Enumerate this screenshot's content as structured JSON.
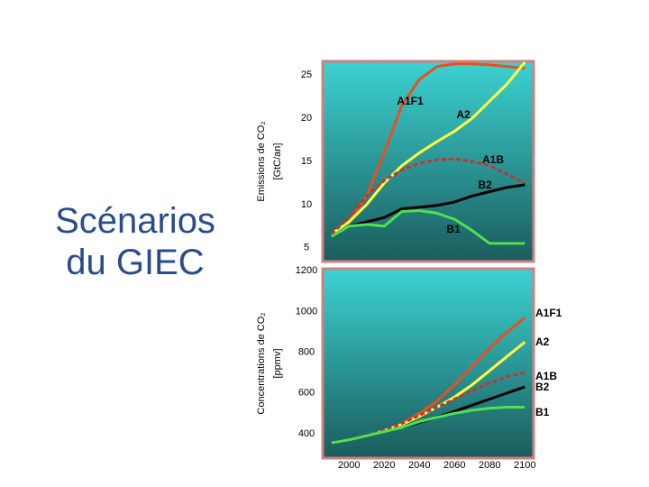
{
  "title": "Scénarios du GIEC",
  "chart_data": [
    {
      "type": "line",
      "ylabel": [
        "Emissions de CO₂",
        "[GtC/an]"
      ],
      "x": [
        1990,
        2000,
        2010,
        2020,
        2030,
        2040,
        2050,
        2060,
        2070,
        2080,
        2090,
        2100
      ],
      "xlim": [
        1985,
        2105
      ],
      "ylim": [
        3.4,
        26.6
      ],
      "yticks": [
        5,
        10,
        15,
        20,
        25
      ],
      "series": [
        {
          "name": "A1F1",
          "color": "#e8501e",
          "dash": false,
          "values": [
            6.6,
            8,
            11,
            16,
            21.5,
            24.5,
            26,
            26.3,
            26.3,
            26.2,
            26,
            25.8
          ]
        },
        {
          "name": "A2",
          "color": "#ffff40",
          "dash": false,
          "values": [
            6.6,
            8,
            10,
            12.5,
            14.5,
            16,
            17.3,
            18.5,
            20,
            22,
            24,
            26.5
          ]
        },
        {
          "name": "A1B",
          "color": "#c83232",
          "dash": true,
          "values": [
            6.6,
            8.5,
            11,
            12.8,
            14,
            14.8,
            15.2,
            15.3,
            15,
            14.5,
            13.5,
            12.5
          ]
        },
        {
          "name": "B2",
          "color": "#000000",
          "dash": false,
          "values": [
            6.3,
            7.5,
            8,
            8.5,
            9.5,
            9.7,
            9.9,
            10.3,
            11,
            11.5,
            12,
            12.3
          ]
        },
        {
          "name": "B1",
          "color": "#50e050",
          "dash": false,
          "values": [
            6.3,
            7.5,
            7.7,
            7.5,
            9.2,
            9.3,
            9,
            8.3,
            7,
            5.5,
            5.5,
            5.5
          ]
        }
      ]
    },
    {
      "type": "line",
      "ylabel": [
        "Concentrations de CO₂",
        "[ppmv]"
      ],
      "x": [
        1990,
        2000,
        2010,
        2020,
        2030,
        2040,
        2050,
        2060,
        2070,
        2080,
        2090,
        2100
      ],
      "xlim": [
        1985,
        2105
      ],
      "ylim": [
        280,
        1210
      ],
      "yticks": [
        400,
        600,
        800,
        1000,
        1200
      ],
      "xticks": [
        2000,
        2020,
        2040,
        2060,
        2080,
        2100
      ],
      "series": [
        {
          "name": "A1F1",
          "color": "#e8501e",
          "dash": false,
          "values": [
            355,
            370,
            390,
            415,
            450,
            500,
            560,
            640,
            730,
            820,
            900,
            970
          ]
        },
        {
          "name": "A2",
          "color": "#ffff40",
          "dash": false,
          "values": [
            355,
            370,
            390,
            415,
            445,
            485,
            530,
            580,
            640,
            710,
            780,
            850
          ]
        },
        {
          "name": "A1B",
          "color": "#c83232",
          "dash": true,
          "values": [
            355,
            370,
            390,
            415,
            450,
            490,
            530,
            570,
            610,
            650,
            680,
            700
          ]
        },
        {
          "name": "B2",
          "color": "#000000",
          "dash": false,
          "values": [
            355,
            370,
            390,
            410,
            430,
            455,
            480,
            510,
            540,
            570,
            600,
            630
          ]
        },
        {
          "name": "B1",
          "color": "#50e050",
          "dash": false,
          "values": [
            355,
            370,
            390,
            410,
            430,
            460,
            480,
            500,
            515,
            525,
            530,
            530
          ]
        }
      ]
    }
  ]
}
